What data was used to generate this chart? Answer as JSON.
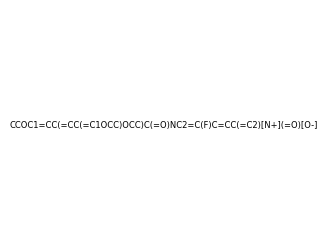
{
  "smiles": "CCOC1=CC(=CC(=C1OCC)OCC)C(=O)NC2=C(F)C=CC(=C2)[N+](=O)[O-]",
  "image_size": 300,
  "background_color": "#f0f0f0"
}
